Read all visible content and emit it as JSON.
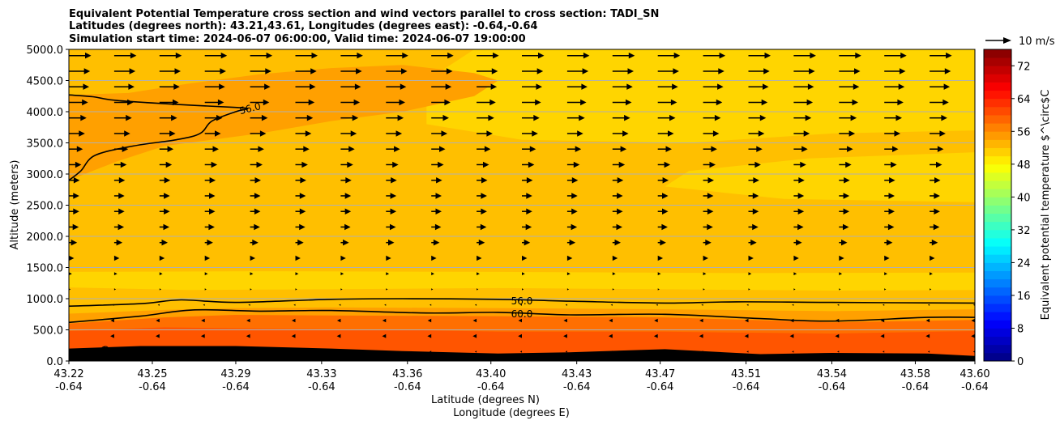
{
  "chart_data": {
    "type": "heatmap",
    "title_lines": [
      "Equivalent Potential Temperature cross section and wind vectors parallel to cross section: TADI_SN",
      "Latitudes (degrees north): 43.21,43.61, Longitudes (degrees east): -0.64,-0.64",
      "Simulation start time: 2024-06-07 06:00:00, Valid time: 2024-06-07 19:00:00"
    ],
    "xlabel": "Latitude (degrees N)",
    "xlabel2": "Longitude (degrees E)",
    "ylabel": "Altitude (meters)",
    "xlim": [
      43.22,
      43.6
    ],
    "ylim": [
      0,
      5000
    ],
    "grid": "horizontal",
    "x_ticks": [
      {
        "lat": "43.22",
        "lon": "-0.64",
        "v": 43.22
      },
      {
        "lat": "43.25",
        "lon": "-0.64",
        "v": 43.255
      },
      {
        "lat": "43.29",
        "lon": "-0.64",
        "v": 43.29
      },
      {
        "lat": "43.33",
        "lon": "-0.64",
        "v": 43.326
      },
      {
        "lat": "43.36",
        "lon": "-0.64",
        "v": 43.362
      },
      {
        "lat": "43.40",
        "lon": "-0.64",
        "v": 43.397
      },
      {
        "lat": "43.43",
        "lon": "-0.64",
        "v": 43.433
      },
      {
        "lat": "43.47",
        "lon": "-0.64",
        "v": 43.468
      },
      {
        "lat": "43.51",
        "lon": "-0.64",
        "v": 43.504
      },
      {
        "lat": "43.54",
        "lon": "-0.64",
        "v": 43.54
      },
      {
        "lat": "43.58",
        "lon": "-0.64",
        "v": 43.575
      },
      {
        "lat": "43.60",
        "lon": "-0.64",
        "v": 43.6
      }
    ],
    "y_ticks": [
      {
        "label": "0.0",
        "v": 0
      },
      {
        "label": "500.0",
        "v": 500
      },
      {
        "label": "1000.0",
        "v": 1000
      },
      {
        "label": "1500.0",
        "v": 1500
      },
      {
        "label": "2000.0",
        "v": 2000
      },
      {
        "label": "2500.0",
        "v": 2500
      },
      {
        "label": "3000.0",
        "v": 3000
      },
      {
        "label": "3500.0",
        "v": 3500
      },
      {
        "label": "4000.0",
        "v": 4000
      },
      {
        "label": "4500.0",
        "v": 4500
      },
      {
        "label": "5000.0",
        "v": 5000
      }
    ],
    "colorbar": {
      "label": "Equivalent potential temperature $^\\circ$C",
      "min": 0,
      "max": 76,
      "step": 2,
      "tick_labels": [
        "0",
        "8",
        "16",
        "24",
        "32",
        "40",
        "48",
        "56",
        "64",
        "72"
      ],
      "tick_values": [
        0,
        8,
        16,
        24,
        32,
        40,
        48,
        56,
        64,
        72
      ]
    },
    "fill_regions": [
      {
        "value": 54,
        "color": "#ffbf00",
        "points": [
          [
            43.22,
            0
          ],
          [
            43.6,
            0
          ],
          [
            43.6,
            5000
          ],
          [
            43.22,
            5000
          ]
        ]
      },
      {
        "value": 52,
        "color": "#ffd500",
        "points": [
          [
            43.22,
            1180
          ],
          [
            43.27,
            1140
          ],
          [
            43.33,
            1150
          ],
          [
            43.4,
            1170
          ],
          [
            43.47,
            1150
          ],
          [
            43.54,
            1130
          ],
          [
            43.6,
            1140
          ],
          [
            43.6,
            1420
          ],
          [
            43.5,
            1410
          ],
          [
            43.4,
            1430
          ],
          [
            43.3,
            1440
          ],
          [
            43.22,
            1430
          ]
        ]
      },
      {
        "value": 52,
        "color": "#ffd500",
        "points": [
          [
            43.47,
            2800
          ],
          [
            43.52,
            2600
          ],
          [
            43.6,
            2550
          ],
          [
            43.6,
            3350
          ],
          [
            43.53,
            3250
          ],
          [
            43.48,
            3050
          ]
        ]
      },
      {
        "value": 52,
        "color": "#ffd500",
        "points": [
          [
            43.37,
            3800
          ],
          [
            43.41,
            3550
          ],
          [
            43.48,
            3500
          ],
          [
            43.54,
            3650
          ],
          [
            43.6,
            3700
          ],
          [
            43.6,
            5000
          ],
          [
            43.39,
            5000
          ],
          [
            43.37,
            4500
          ]
        ]
      },
      {
        "value": 58,
        "color": "#ffa000",
        "points": [
          [
            43.22,
            4270
          ],
          [
            43.245,
            4300
          ],
          [
            43.27,
            4450
          ],
          [
            43.3,
            4600
          ],
          [
            43.33,
            4700
          ],
          [
            43.36,
            4750
          ],
          [
            43.39,
            4620
          ],
          [
            43.4,
            4500
          ],
          [
            43.39,
            4250
          ],
          [
            43.36,
            4000
          ],
          [
            43.33,
            3850
          ],
          [
            43.3,
            3650
          ],
          [
            43.26,
            3450
          ],
          [
            43.24,
            3200
          ],
          [
            43.22,
            2900
          ]
        ]
      },
      {
        "value": 58,
        "color": "#ffa000",
        "points": [
          [
            43.22,
            760
          ],
          [
            43.26,
            820
          ],
          [
            43.29,
            850
          ],
          [
            43.33,
            860
          ],
          [
            43.4,
            850
          ],
          [
            43.47,
            830
          ],
          [
            43.54,
            800
          ],
          [
            43.6,
            830
          ],
          [
            43.6,
            0
          ],
          [
            43.22,
            0
          ]
        ]
      },
      {
        "value": 62,
        "color": "#ff6f00",
        "points": [
          [
            43.22,
            600
          ],
          [
            43.26,
            700
          ],
          [
            43.29,
            740
          ],
          [
            43.33,
            730
          ],
          [
            43.4,
            720
          ],
          [
            43.47,
            700
          ],
          [
            43.54,
            620
          ],
          [
            43.6,
            660
          ],
          [
            43.6,
            0
          ],
          [
            43.22,
            0
          ]
        ]
      },
      {
        "value": 64,
        "color": "#ff5500",
        "points": [
          [
            43.22,
            480
          ],
          [
            43.26,
            540
          ],
          [
            43.3,
            520
          ],
          [
            43.36,
            500
          ],
          [
            43.4,
            470
          ],
          [
            43.47,
            470
          ],
          [
            43.54,
            440
          ],
          [
            43.6,
            480
          ],
          [
            43.6,
            0
          ],
          [
            43.22,
            0
          ]
        ]
      }
    ],
    "contours": [
      {
        "label": "56.0",
        "points": [
          [
            43.22,
            2900
          ],
          [
            43.225,
            3050
          ],
          [
            43.231,
            3300
          ],
          [
            43.247,
            3450
          ],
          [
            43.265,
            3550
          ],
          [
            43.275,
            3650
          ],
          [
            43.28,
            3850
          ],
          [
            43.29,
            4000
          ],
          [
            43.295,
            4050
          ],
          [
            43.289,
            4070
          ],
          [
            43.264,
            4120
          ],
          [
            43.24,
            4180
          ],
          [
            43.23,
            4240
          ],
          [
            43.22,
            4270
          ]
        ]
      },
      {
        "label": "56.0",
        "points": [
          [
            43.22,
            880
          ],
          [
            43.25,
            920
          ],
          [
            43.267,
            980
          ],
          [
            43.29,
            940
          ],
          [
            43.33,
            990
          ],
          [
            43.36,
            1000
          ],
          [
            43.4,
            990
          ],
          [
            43.43,
            960
          ],
          [
            43.47,
            930
          ],
          [
            43.5,
            950
          ],
          [
            43.54,
            940
          ],
          [
            43.6,
            930
          ]
        ]
      },
      {
        "label": "60.0",
        "points": [
          [
            43.22,
            620
          ],
          [
            43.25,
            720
          ],
          [
            43.272,
            820
          ],
          [
            43.3,
            800
          ],
          [
            43.33,
            810
          ],
          [
            43.37,
            770
          ],
          [
            43.4,
            780
          ],
          [
            43.43,
            740
          ],
          [
            43.47,
            750
          ],
          [
            43.51,
            680
          ],
          [
            43.54,
            640
          ],
          [
            43.58,
            700
          ],
          [
            43.6,
            700
          ]
        ]
      }
    ],
    "contour_labels": [
      {
        "text": "56.0",
        "x": 43.296,
        "y": 4050,
        "angle": -14
      },
      {
        "text": "56.0",
        "x": 43.41,
        "y": 960,
        "angle": 0
      },
      {
        "text": "60.0",
        "x": 43.41,
        "y": 755,
        "angle": 0
      },
      {
        "text": "6",
        "x": 43.235,
        "y": 200,
        "angle": 80
      }
    ],
    "terrain": {
      "color": "#000000",
      "points": [
        [
          43.22,
          200
        ],
        [
          43.25,
          240
        ],
        [
          43.29,
          240
        ],
        [
          43.33,
          200
        ],
        [
          43.36,
          160
        ],
        [
          43.4,
          120
        ],
        [
          43.43,
          140
        ],
        [
          43.47,
          190
        ],
        [
          43.51,
          110
        ],
        [
          43.54,
          130
        ],
        [
          43.58,
          120
        ],
        [
          43.6,
          80
        ]
      ]
    },
    "wind_vectors": {
      "reference_label": "10 m/s",
      "reference_speed": 10,
      "levels": [
        {
          "z": 150,
          "u": -0.3
        },
        {
          "z": 400,
          "u": -1.5
        },
        {
          "z": 650,
          "u": -1.4
        },
        {
          "z": 900,
          "u": -0.6
        },
        {
          "z": 1150,
          "u": 0.6
        },
        {
          "z": 1400,
          "u": 1.2
        },
        {
          "z": 1650,
          "u": 2.0
        },
        {
          "z": 1900,
          "u": 3.2
        },
        {
          "z": 2150,
          "u": 3.8
        },
        {
          "z": 2400,
          "u": 4.0
        },
        {
          "z": 2650,
          "u": 4.0
        },
        {
          "z": 2900,
          "u": 4.2
        },
        {
          "z": 3150,
          "u": 4.8
        },
        {
          "z": 3400,
          "u": 5.4
        },
        {
          "z": 3650,
          "u": 6.2
        },
        {
          "z": 3900,
          "u": 6.8
        },
        {
          "z": 4150,
          "u": 7.4
        },
        {
          "z": 4400,
          "u": 7.8
        },
        {
          "z": 4650,
          "u": 8.2
        },
        {
          "z": 4900,
          "u": 8.6
        }
      ],
      "columns": [
        43.22,
        43.239,
        43.258,
        43.277,
        43.296,
        43.315,
        43.334,
        43.353,
        43.372,
        43.391,
        43.41,
        43.429,
        43.448,
        43.467,
        43.486,
        43.505,
        43.524,
        43.543,
        43.562,
        43.581,
        43.6
      ]
    }
  }
}
